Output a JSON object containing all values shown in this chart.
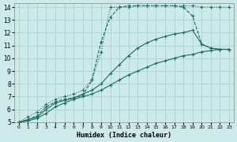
{
  "xlabel": "Humidex (Indice chaleur)",
  "background_color": "#cdeaea",
  "grid_color": "#afd4d4",
  "line_color": "#1b6b5e",
  "xlim": [
    -0.5,
    23.5
  ],
  "ylim": [
    5,
    14.3
  ],
  "xticks": [
    0,
    1,
    2,
    3,
    4,
    5,
    6,
    7,
    8,
    9,
    10,
    11,
    12,
    13,
    14,
    15,
    16,
    17,
    18,
    19,
    20,
    21,
    22,
    23
  ],
  "yticks": [
    5,
    6,
    7,
    8,
    9,
    10,
    11,
    12,
    13,
    14
  ],
  "series": [
    {
      "x": [
        0,
        1,
        2,
        3,
        4,
        5,
        6,
        7,
        8,
        9,
        10,
        11,
        12,
        13,
        14,
        15,
        16,
        17,
        18,
        19,
        20,
        21,
        22,
        23
      ],
      "y": [
        5,
        5.4,
        5.8,
        6.4,
        6.8,
        7.0,
        7.2,
        7.5,
        8.3,
        10.5,
        14.0,
        14.0,
        14.0,
        14.1,
        14.1,
        14.1,
        14.1,
        14.1,
        14.1,
        14.1,
        14.0,
        14.0,
        14.0,
        14.0
      ],
      "linestyle": ":",
      "linewidth": 0.8,
      "marker": "+"
    },
    {
      "x": [
        0,
        1,
        2,
        3,
        4,
        5,
        6,
        7,
        8,
        9,
        10,
        11,
        12,
        13,
        14,
        15,
        16,
        17,
        18,
        19,
        20,
        21,
        22,
        23
      ],
      "y": [
        5,
        5.2,
        5.5,
        6.2,
        6.6,
        6.8,
        6.9,
        7.1,
        8.3,
        11.3,
        13.2,
        14.0,
        14.1,
        14.1,
        14.1,
        14.1,
        14.1,
        14.1,
        14.0,
        13.3,
        11.1,
        10.8,
        10.7,
        10.7
      ],
      "linestyle": "--",
      "linewidth": 0.8,
      "marker": "+"
    },
    {
      "x": [
        0,
        1,
        2,
        3,
        4,
        5,
        6,
        7,
        8,
        9,
        10,
        11,
        12,
        13,
        14,
        15,
        16,
        17,
        18,
        19,
        20,
        21,
        22,
        23
      ],
      "y": [
        5,
        5.2,
        5.4,
        6.0,
        6.5,
        6.7,
        6.9,
        7.2,
        7.5,
        8.0,
        8.8,
        9.5,
        10.2,
        10.8,
        11.2,
        11.5,
        11.7,
        11.9,
        12.0,
        12.2,
        11.1,
        10.8,
        10.7,
        10.7
      ],
      "linestyle": "-",
      "linewidth": 0.8,
      "marker": "+"
    },
    {
      "x": [
        0,
        1,
        2,
        3,
        4,
        5,
        6,
        7,
        8,
        9,
        10,
        11,
        12,
        13,
        14,
        15,
        16,
        17,
        18,
        19,
        20,
        21,
        22,
        23
      ],
      "y": [
        5,
        5.1,
        5.3,
        5.7,
        6.2,
        6.5,
        6.8,
        7.0,
        7.2,
        7.5,
        7.9,
        8.3,
        8.7,
        9.0,
        9.3,
        9.6,
        9.8,
        10.0,
        10.2,
        10.3,
        10.5,
        10.6,
        10.7,
        10.7
      ],
      "linestyle": "-",
      "linewidth": 0.8,
      "marker": "+"
    }
  ]
}
